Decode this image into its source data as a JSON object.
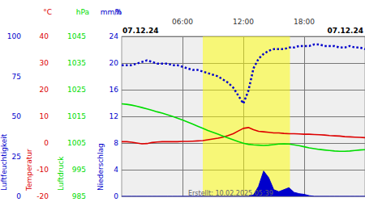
{
  "chart_data": {
    "type": "line",
    "annotations": [
      "07.12.24",
      "07.12.24",
      "Erstellt: 10.02.2025 05:39"
    ],
    "xlim": [
      0,
      24
    ],
    "xticks": [
      {
        "value": 6,
        "label": "06:00"
      },
      {
        "value": 12,
        "label": "12:00"
      },
      {
        "value": 18,
        "label": "18:00"
      }
    ],
    "grid": true,
    "daylight": [
      8.0,
      16.6
    ],
    "x": [
      0,
      0.5,
      1,
      1.5,
      2,
      2.5,
      3,
      3.5,
      4,
      4.5,
      5,
      5.5,
      6,
      6.5,
      7,
      7.5,
      8,
      8.5,
      9,
      9.5,
      10,
      10.5,
      11,
      11.5,
      12,
      12.5,
      13,
      13.5,
      14,
      14.5,
      15,
      15.5,
      16,
      16.5,
      17,
      17.5,
      18,
      18.5,
      19,
      19.5,
      20,
      20.5,
      21,
      21.5,
      22,
      22.5,
      23,
      23.5,
      24
    ],
    "series": [
      {
        "name": "Luftfeuchtigkeit",
        "unit": "%",
        "color": "#0000cc",
        "type": "line",
        "line_style": "dotted",
        "ylim": [
          0,
          100
        ],
        "yticks": [
          0,
          25,
          50,
          75,
          100
        ],
        "values": [
          82,
          82,
          82,
          83,
          84,
          85,
          84,
          83,
          83,
          83,
          82,
          82,
          81,
          80,
          79,
          79,
          78,
          77,
          76,
          75,
          73,
          71,
          68,
          63,
          58,
          66,
          80,
          86,
          89,
          91,
          92,
          92,
          92,
          93,
          93,
          94,
          94,
          94,
          95,
          95,
          94,
          94,
          94,
          93,
          93,
          94,
          93,
          93,
          92
        ]
      },
      {
        "name": "Temperatur",
        "unit": "°C",
        "color": "#dd0000",
        "type": "line",
        "line_style": "solid",
        "ylim": [
          -20,
          40
        ],
        "yticks": [
          -20,
          -10,
          0,
          10,
          20,
          30,
          40
        ],
        "values": [
          0.5,
          0.5,
          0.3,
          0,
          -0.3,
          -0.2,
          0.2,
          0.4,
          0.5,
          0.5,
          0.5,
          0.5,
          0.6,
          0.6,
          0.7,
          0.8,
          0.9,
          1.2,
          1.5,
          1.8,
          2.2,
          2.8,
          3.5,
          4.5,
          5.5,
          5.8,
          5.0,
          4.4,
          4.2,
          4.0,
          3.8,
          3.8,
          3.6,
          3.5,
          3.5,
          3.4,
          3.3,
          3.3,
          3.2,
          3.1,
          3.0,
          2.8,
          2.7,
          2.6,
          2.4,
          2.3,
          2.2,
          2.1,
          2.0
        ]
      },
      {
        "name": "Luftdruck",
        "unit": "hPa",
        "color": "#00dd00",
        "type": "line",
        "line_style": "solid",
        "ylim": [
          985,
          1045
        ],
        "yticks": [
          985,
          995,
          1005,
          1015,
          1025,
          1035,
          1045
        ],
        "values": [
          1019.7,
          1019.5,
          1019.2,
          1018.8,
          1018.3,
          1017.8,
          1017.3,
          1016.7,
          1016.2,
          1015.6,
          1015.0,
          1014.3,
          1013.6,
          1012.9,
          1012.1,
          1011.3,
          1010.5,
          1009.7,
          1009.0,
          1008.3,
          1007.6,
          1006.9,
          1006.2,
          1005.5,
          1004.9,
          1004.5,
          1004.3,
          1004.2,
          1004.1,
          1004.2,
          1004.4,
          1004.6,
          1004.7,
          1004.6,
          1004.3,
          1004.0,
          1003.6,
          1003.2,
          1002.9,
          1002.6,
          1002.4,
          1002.2,
          1002.0,
          1001.9,
          1001.9,
          1002.0,
          1002.2,
          1002.4,
          1002.5
        ]
      },
      {
        "name": "Niederschlag",
        "unit": "mm/h",
        "color": "#0000cc",
        "type": "area",
        "line_style": "solid",
        "ylim": [
          0,
          24
        ],
        "yticks": [
          0,
          4,
          8,
          12,
          16,
          20,
          24
        ],
        "values": [
          0,
          0,
          0,
          0,
          0,
          0,
          0,
          0,
          0,
          0,
          0,
          0,
          0,
          0,
          0,
          0,
          0,
          0,
          0,
          0,
          0,
          0,
          0,
          0,
          0,
          0,
          0.2,
          1.5,
          3.8,
          2.8,
          1.0,
          0.7,
          1.0,
          1.3,
          0.6,
          0.4,
          0.3,
          0.1,
          0,
          0,
          0,
          0,
          0,
          0,
          0,
          0,
          0,
          0,
          0
        ]
      }
    ]
  }
}
